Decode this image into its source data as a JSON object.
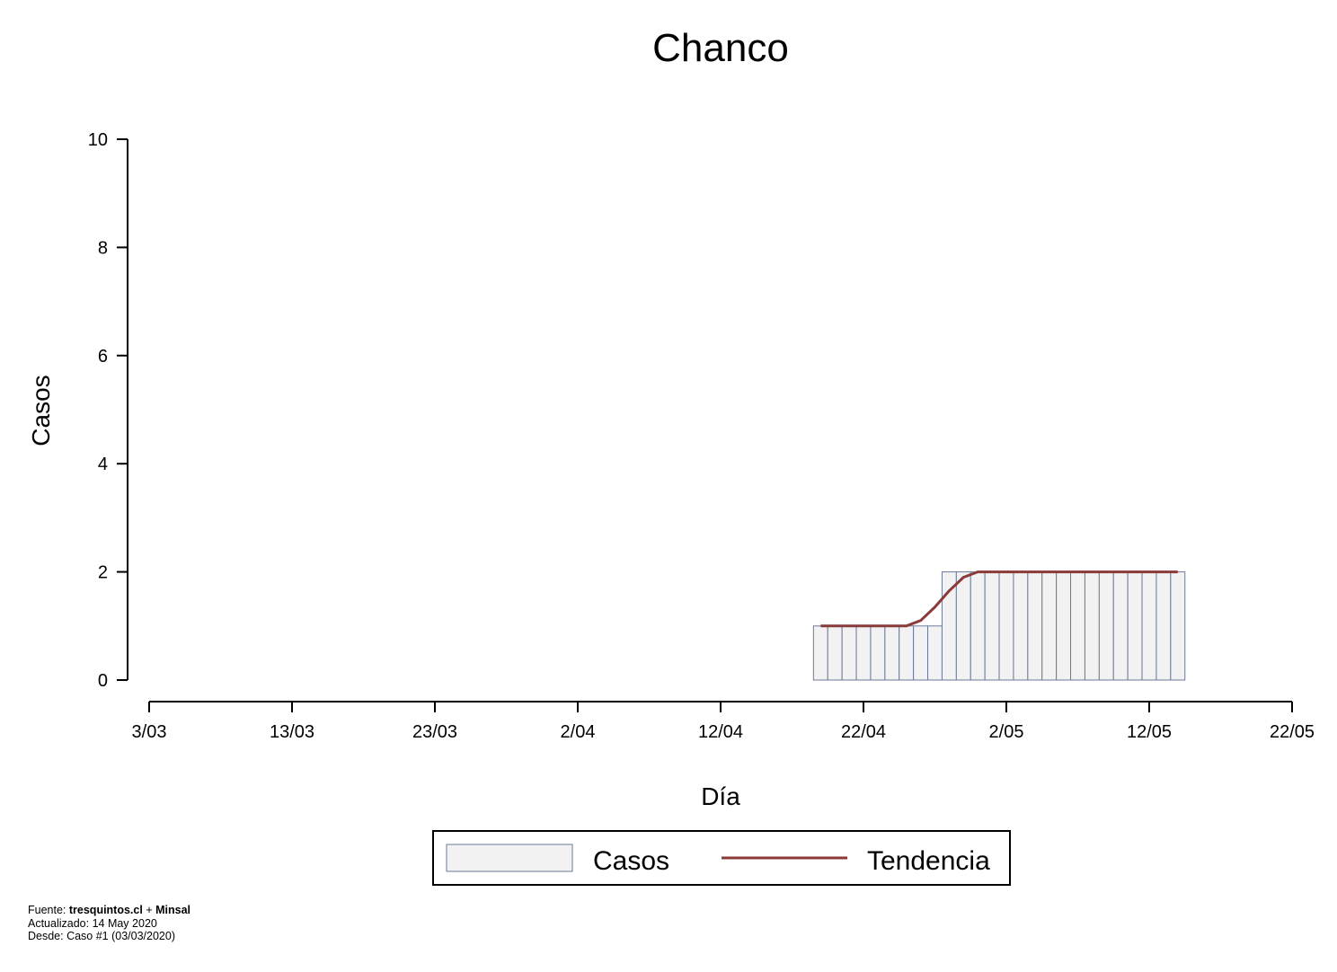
{
  "chart_data": {
    "type": "bar",
    "title": "Chanco",
    "xlabel": "Día",
    "ylabel": "Casos",
    "ylim": [
      0,
      10
    ],
    "yticks": [
      "0",
      "2",
      "4",
      "6",
      "8",
      "10"
    ],
    "xticks": [
      "3/03",
      "13/03",
      "23/03",
      "2/04",
      "12/04",
      "22/04",
      "2/05",
      "12/05",
      "22/05"
    ],
    "x_start": "2020-03-03",
    "x_end": "2020-05-22",
    "x": [
      "2020-04-19",
      "2020-04-20",
      "2020-04-21",
      "2020-04-22",
      "2020-04-23",
      "2020-04-24",
      "2020-04-25",
      "2020-04-26",
      "2020-04-27",
      "2020-04-28",
      "2020-04-29",
      "2020-04-30",
      "2020-05-01",
      "2020-05-02",
      "2020-05-03",
      "2020-05-04",
      "2020-05-05",
      "2020-05-06",
      "2020-05-07",
      "2020-05-08",
      "2020-05-09",
      "2020-05-10",
      "2020-05-11",
      "2020-05-12",
      "2020-05-13",
      "2020-05-14"
    ],
    "series": [
      {
        "name": "Casos",
        "kind": "bar",
        "values": [
          1,
          1,
          1,
          1,
          1,
          1,
          1,
          1,
          1,
          2,
          2,
          2,
          2,
          2,
          2,
          2,
          2,
          2,
          2,
          2,
          2,
          2,
          2,
          2,
          2,
          2
        ]
      },
      {
        "name": "Tendencia",
        "kind": "line",
        "values": [
          1,
          1,
          1,
          1,
          1,
          1,
          1,
          1.1,
          1.35,
          1.65,
          1.9,
          2,
          2,
          2,
          2,
          2,
          2,
          2,
          2,
          2,
          2,
          2,
          2,
          2,
          2,
          2
        ]
      }
    ],
    "legend": "bottom-center",
    "grid": false,
    "colors": {
      "bar_fill": "#f2f2f2",
      "bar_edge": "#6b7a99",
      "line": "#8b3a3a"
    }
  },
  "footer": {
    "source_prefix": "Fuente: ",
    "source_site": "tresquintos.cl",
    "source_sep": " + ",
    "source_org": "Minsal",
    "updated": "Actualizado: 14 May 2020",
    "since": "Desde: Caso #1  (03/03/2020)"
  }
}
